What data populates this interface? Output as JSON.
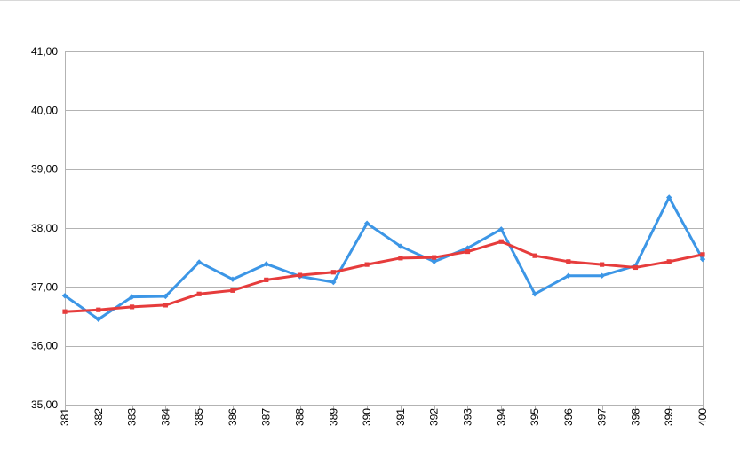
{
  "chart_data": {
    "type": "line",
    "title": "",
    "xlabel": "",
    "ylabel": "",
    "categories": [
      "381",
      "382",
      "383",
      "384",
      "385",
      "386",
      "387",
      "388",
      "389",
      "390",
      "391",
      "392",
      "393",
      "394",
      "395",
      "396",
      "397",
      "398",
      "399",
      "400"
    ],
    "ylim": [
      35,
      41
    ],
    "ytick_labels": [
      "35,00",
      "36,00",
      "37,00",
      "38,00",
      "39,00",
      "40,00",
      "41,00"
    ],
    "grid": true,
    "legend": "none",
    "series": [
      {
        "color": "#3c96e6",
        "marker": "diamond",
        "values": [
          36.85,
          36.45,
          36.83,
          36.84,
          37.42,
          37.13,
          37.39,
          37.18,
          37.08,
          38.08,
          37.69,
          37.43,
          37.66,
          37.98,
          36.88,
          37.19,
          37.19,
          37.36,
          38.52,
          37.47
        ]
      },
      {
        "color": "#e63c3c",
        "marker": "square",
        "values": [
          36.58,
          36.61,
          36.66,
          36.69,
          36.88,
          36.94,
          37.12,
          37.2,
          37.25,
          37.38,
          37.49,
          37.5,
          37.6,
          37.77,
          37.53,
          37.43,
          37.38,
          37.33,
          37.43,
          37.55
        ]
      }
    ]
  }
}
